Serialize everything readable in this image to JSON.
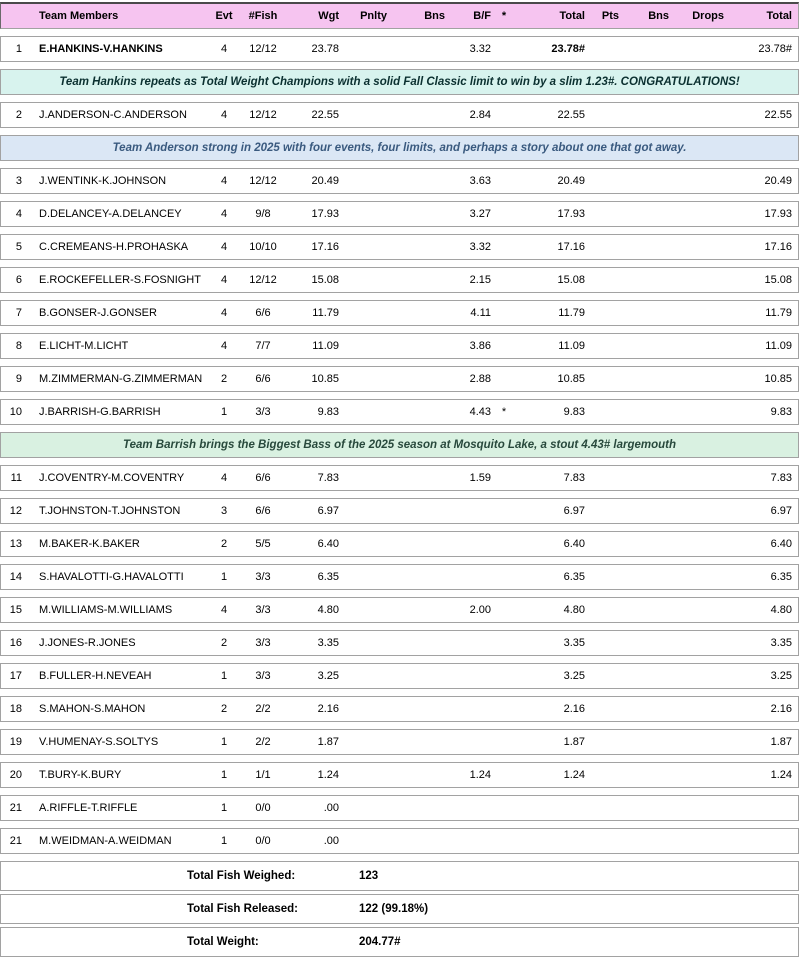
{
  "colors": {
    "header_bg": "#f6c4f0",
    "row_border": "#a2a2a2",
    "note_hankins_bg": "#d8f3ee",
    "note_hankins_text": "#0b3030",
    "note_anderson_bg": "#dbe7f5",
    "note_anderson_text": "#3a5a7f",
    "note_barrish_bg": "#d9f1e1",
    "note_barrish_text": "#28493c"
  },
  "table": {
    "columns": [
      "Team Members",
      "Evt",
      "#Fish",
      "Wgt",
      "Pnlty",
      "Bns",
      "B/F",
      "*",
      "Total",
      "Pts",
      "Bns",
      "Drops",
      "Total"
    ],
    "rows": [
      {
        "type": "team",
        "rank": "1",
        "team": "E.HANKINS-V.HANKINS",
        "evt": "4",
        "fish": "12/12",
        "wgt": "23.78",
        "pnlty": "",
        "bns": "",
        "bf": "3.32",
        "star": "",
        "total": "23.78#",
        "pts": "",
        "bns2": "",
        "drops": "",
        "total2": "23.78#",
        "bold": [
          "team",
          "total"
        ]
      },
      {
        "type": "note",
        "text": "Team Hankins repeats as Total Weight Champions with a solid Fall Classic limit to win by a slim 1.23#. CONGRATULATIONS!",
        "bg": "#d8f3ee",
        "color": "#0b3030"
      },
      {
        "type": "team",
        "rank": "2",
        "team": "J.ANDERSON-C.ANDERSON",
        "evt": "4",
        "fish": "12/12",
        "wgt": "22.55",
        "pnlty": "",
        "bns": "",
        "bf": "2.84",
        "star": "",
        "total": "22.55",
        "pts": "",
        "bns2": "",
        "drops": "",
        "total2": "22.55",
        "bold": []
      },
      {
        "type": "note",
        "text": "Team Anderson strong in 2025 with four events, four limits, and perhaps a story about one that got away.",
        "bg": "#dbe7f5",
        "color": "#3a5a7f"
      },
      {
        "type": "team",
        "rank": "3",
        "team": "J.WENTINK-K.JOHNSON",
        "evt": "4",
        "fish": "12/12",
        "wgt": "20.49",
        "pnlty": "",
        "bns": "",
        "bf": "3.63",
        "star": "",
        "total": "20.49",
        "pts": "",
        "bns2": "",
        "drops": "",
        "total2": "20.49",
        "bold": []
      },
      {
        "type": "team",
        "rank": "4",
        "team": "D.DELANCEY-A.DELANCEY",
        "evt": "4",
        "fish": "9/8",
        "wgt": "17.93",
        "pnlty": "",
        "bns": "",
        "bf": "3.27",
        "star": "",
        "total": "17.93",
        "pts": "",
        "bns2": "",
        "drops": "",
        "total2": "17.93",
        "bold": []
      },
      {
        "type": "team",
        "rank": "5",
        "team": "C.CREMEANS-H.PROHASKA",
        "evt": "4",
        "fish": "10/10",
        "wgt": "17.16",
        "pnlty": "",
        "bns": "",
        "bf": "3.32",
        "star": "",
        "total": "17.16",
        "pts": "",
        "bns2": "",
        "drops": "",
        "total2": "17.16",
        "bold": []
      },
      {
        "type": "team",
        "rank": "6",
        "team": "E.ROCKEFELLER-S.FOSNIGHT",
        "evt": "4",
        "fish": "12/12",
        "wgt": "15.08",
        "pnlty": "",
        "bns": "",
        "bf": "2.15",
        "star": "",
        "total": "15.08",
        "pts": "",
        "bns2": "",
        "drops": "",
        "total2": "15.08",
        "bold": []
      },
      {
        "type": "team",
        "rank": "7",
        "team": "B.GONSER-J.GONSER",
        "evt": "4",
        "fish": "6/6",
        "wgt": "11.79",
        "pnlty": "",
        "bns": "",
        "bf": "4.11",
        "star": "",
        "total": "11.79",
        "pts": "",
        "bns2": "",
        "drops": "",
        "total2": "11.79",
        "bold": []
      },
      {
        "type": "team",
        "rank": "8",
        "team": "E.LICHT-M.LICHT",
        "evt": "4",
        "fish": "7/7",
        "wgt": "11.09",
        "pnlty": "",
        "bns": "",
        "bf": "3.86",
        "star": "",
        "total": "11.09",
        "pts": "",
        "bns2": "",
        "drops": "",
        "total2": "11.09",
        "bold": []
      },
      {
        "type": "team",
        "rank": "9",
        "team": "M.ZIMMERMAN-G.ZIMMERMAN",
        "evt": "2",
        "fish": "6/6",
        "wgt": "10.85",
        "pnlty": "",
        "bns": "",
        "bf": "2.88",
        "star": "",
        "total": "10.85",
        "pts": "",
        "bns2": "",
        "drops": "",
        "total2": "10.85",
        "bold": []
      },
      {
        "type": "team",
        "rank": "10",
        "team": "J.BARRISH-G.BARRISH",
        "evt": "1",
        "fish": "3/3",
        "wgt": "9.83",
        "pnlty": "",
        "bns": "",
        "bf": "4.43",
        "star": "*",
        "total": "9.83",
        "pts": "",
        "bns2": "",
        "drops": "",
        "total2": "9.83",
        "bold": []
      },
      {
        "type": "note",
        "text": "Team Barrish brings the Biggest Bass of the 2025 season at Mosquito Lake, a stout 4.43# largemouth",
        "bg": "#d9f1e1",
        "color": "#28493c"
      },
      {
        "type": "team",
        "rank": "11",
        "team": "J.COVENTRY-M.COVENTRY",
        "evt": "4",
        "fish": "6/6",
        "wgt": "7.83",
        "pnlty": "",
        "bns": "",
        "bf": "1.59",
        "star": "",
        "total": "7.83",
        "pts": "",
        "bns2": "",
        "drops": "",
        "total2": "7.83",
        "bold": []
      },
      {
        "type": "team",
        "rank": "12",
        "team": "T.JOHNSTON-T.JOHNSTON",
        "evt": "3",
        "fish": "6/6",
        "wgt": "6.97",
        "pnlty": "",
        "bns": "",
        "bf": "",
        "star": "",
        "total": "6.97",
        "pts": "",
        "bns2": "",
        "drops": "",
        "total2": "6.97",
        "bold": []
      },
      {
        "type": "team",
        "rank": "13",
        "team": "M.BAKER-K.BAKER",
        "evt": "2",
        "fish": "5/5",
        "wgt": "6.40",
        "pnlty": "",
        "bns": "",
        "bf": "",
        "star": "",
        "total": "6.40",
        "pts": "",
        "bns2": "",
        "drops": "",
        "total2": "6.40",
        "bold": []
      },
      {
        "type": "team",
        "rank": "14",
        "team": "S.HAVALOTTI-G.HAVALOTTI",
        "evt": "1",
        "fish": "3/3",
        "wgt": "6.35",
        "pnlty": "",
        "bns": "",
        "bf": "",
        "star": "",
        "total": "6.35",
        "pts": "",
        "bns2": "",
        "drops": "",
        "total2": "6.35",
        "bold": []
      },
      {
        "type": "team",
        "rank": "15",
        "team": "M.WILLIAMS-M.WILLIAMS",
        "evt": "4",
        "fish": "3/3",
        "wgt": "4.80",
        "pnlty": "",
        "bns": "",
        "bf": "2.00",
        "star": "",
        "total": "4.80",
        "pts": "",
        "bns2": "",
        "drops": "",
        "total2": "4.80",
        "bold": []
      },
      {
        "type": "team",
        "rank": "16",
        "team": "J.JONES-R.JONES",
        "evt": "2",
        "fish": "3/3",
        "wgt": "3.35",
        "pnlty": "",
        "bns": "",
        "bf": "",
        "star": "",
        "total": "3.35",
        "pts": "",
        "bns2": "",
        "drops": "",
        "total2": "3.35",
        "bold": []
      },
      {
        "type": "team",
        "rank": "17",
        "team": "B.FULLER-H.NEVEAH",
        "evt": "1",
        "fish": "3/3",
        "wgt": "3.25",
        "pnlty": "",
        "bns": "",
        "bf": "",
        "star": "",
        "total": "3.25",
        "pts": "",
        "bns2": "",
        "drops": "",
        "total2": "3.25",
        "bold": []
      },
      {
        "type": "team",
        "rank": "18",
        "team": "S.MAHON-S.MAHON",
        "evt": "2",
        "fish": "2/2",
        "wgt": "2.16",
        "pnlty": "",
        "bns": "",
        "bf": "",
        "star": "",
        "total": "2.16",
        "pts": "",
        "bns2": "",
        "drops": "",
        "total2": "2.16",
        "bold": []
      },
      {
        "type": "team",
        "rank": "19",
        "team": "V.HUMENAY-S.SOLTYS",
        "evt": "1",
        "fish": "2/2",
        "wgt": "1.87",
        "pnlty": "",
        "bns": "",
        "bf": "",
        "star": "",
        "total": "1.87",
        "pts": "",
        "bns2": "",
        "drops": "",
        "total2": "1.87",
        "bold": []
      },
      {
        "type": "team",
        "rank": "20",
        "team": "T.BURY-K.BURY",
        "evt": "1",
        "fish": "1/1",
        "wgt": "1.24",
        "pnlty": "",
        "bns": "",
        "bf": "1.24",
        "star": "",
        "total": "1.24",
        "pts": "",
        "bns2": "",
        "drops": "",
        "total2": "1.24",
        "bold": []
      },
      {
        "type": "team",
        "rank": "21",
        "team": "A.RIFFLE-T.RIFFLE",
        "evt": "1",
        "fish": "0/0",
        "wgt": ".00",
        "pnlty": "",
        "bns": "",
        "bf": "",
        "star": "",
        "total": "",
        "pts": "",
        "bns2": "",
        "drops": "",
        "total2": "",
        "bold": []
      },
      {
        "type": "team",
        "rank": "21",
        "team": "M.WEIDMAN-A.WEIDMAN",
        "evt": "1",
        "fish": "0/0",
        "wgt": ".00",
        "pnlty": "",
        "bns": "",
        "bf": "",
        "star": "",
        "total": "",
        "pts": "",
        "bns2": "",
        "drops": "",
        "total2": "",
        "bold": []
      }
    ]
  },
  "summary": {
    "rows": [
      {
        "label": "Total Fish Weighed:",
        "value": "123"
      },
      {
        "label": "Total Fish Released:",
        "value": "122 (99.18%)"
      },
      {
        "label": "Total Weight:",
        "value": "204.77#"
      }
    ]
  }
}
